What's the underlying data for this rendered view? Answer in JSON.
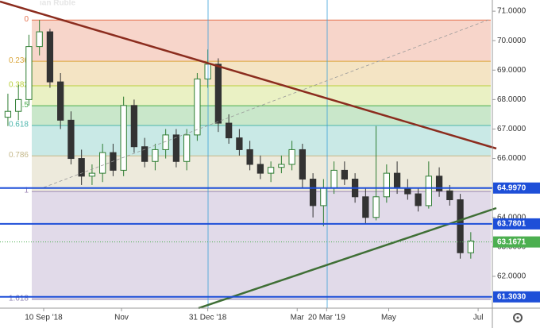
{
  "chart_data": {
    "type": "candlestick",
    "watermark": "ian Ruble",
    "categories": [
      null,
      null,
      null,
      null,
      null,
      null,
      null,
      null,
      null,
      null,
      null,
      null,
      null,
      null,
      null,
      null,
      null,
      null,
      null,
      null,
      null,
      null,
      null,
      null,
      null,
      null,
      null,
      null,
      null,
      null,
      null,
      null,
      null,
      null,
      null,
      null,
      null,
      null,
      null,
      null,
      null,
      null,
      null,
      null,
      null
    ],
    "open": [
      67.4,
      67.6,
      68.0,
      69.8,
      70.3,
      68.6,
      67.3,
      66.0,
      65.4,
      65.5,
      66.2,
      65.6,
      67.8,
      66.4,
      65.9,
      66.3,
      66.8,
      65.9,
      66.8,
      68.7,
      69.2,
      67.2,
      66.7,
      66.3,
      65.8,
      65.5,
      65.7,
      65.8,
      66.3,
      65.3,
      64.4,
      65.0,
      65.6,
      65.3,
      64.7,
      64.0,
      64.7,
      65.5,
      65.0,
      64.8,
      64.4,
      65.4,
      64.9,
      64.6,
      62.8
    ],
    "high": [
      68.2,
      68.5,
      70.2,
      70.7,
      70.4,
      68.9,
      67.6,
      66.3,
      65.8,
      66.5,
      66.5,
      68.1,
      68.0,
      66.7,
      66.5,
      67.0,
      67.0,
      67.0,
      68.9,
      69.7,
      69.4,
      67.5,
      67.0,
      66.6,
      66.1,
      65.9,
      66.1,
      66.6,
      66.5,
      65.5,
      65.3,
      65.9,
      65.9,
      65.5,
      65.0,
      67.1,
      65.8,
      65.9,
      65.3,
      65.0,
      65.9,
      65.7,
      65.1,
      64.8,
      63.5
    ],
    "low": [
      67.1,
      67.3,
      67.8,
      69.5,
      68.4,
      67.0,
      65.8,
      65.1,
      65.1,
      65.2,
      65.4,
      65.4,
      66.2,
      65.7,
      65.6,
      66.0,
      65.7,
      65.6,
      66.6,
      68.4,
      66.9,
      66.5,
      66.1,
      65.6,
      65.3,
      65.2,
      65.5,
      65.6,
      65.0,
      64.0,
      63.7,
      64.8,
      65.1,
      64.5,
      63.8,
      63.9,
      64.5,
      64.8,
      64.6,
      64.2,
      64.3,
      64.7,
      64.4,
      62.6,
      62.6
    ],
    "close": [
      67.6,
      68.0,
      69.8,
      70.3,
      68.6,
      67.3,
      66.0,
      65.4,
      65.5,
      66.2,
      65.6,
      67.8,
      66.4,
      65.9,
      66.3,
      66.8,
      65.9,
      66.8,
      68.7,
      69.2,
      67.2,
      66.7,
      66.3,
      65.8,
      65.5,
      65.7,
      65.8,
      66.3,
      65.3,
      64.4,
      65.0,
      65.6,
      65.3,
      64.7,
      64.0,
      64.7,
      65.5,
      65.0,
      64.8,
      64.4,
      65.4,
      64.9,
      64.6,
      62.8,
      63.2
    ],
    "up_color": "#2e7d32",
    "down_color": "#333333",
    "xlim": [
      -0.75,
      45.9
    ],
    "xticks": [
      {
        "value": 3.4,
        "label": "10 Sep '18"
      },
      {
        "value": 10.8,
        "label": "Nov"
      },
      {
        "value": 19.0,
        "label": "31 Dec '18"
      },
      {
        "value": 27.5,
        "label": "Mar"
      },
      {
        "value": 30.3,
        "label": "20 Mar '19"
      },
      {
        "value": 36.2,
        "label": "May"
      },
      {
        "value": 44.7,
        "label": "Jul"
      }
    ],
    "ylim": [
      60.92,
      71.38
    ],
    "yticks": [
      {
        "value": 71,
        "label": "71.0000"
      },
      {
        "value": 70,
        "label": "70.0000"
      },
      {
        "value": 69,
        "label": "69.0000"
      },
      {
        "value": 68,
        "label": "68.0000"
      },
      {
        "value": 67,
        "label": "67.0000"
      },
      {
        "value": 66,
        "label": "66.0000"
      },
      {
        "value": 65,
        "label": "65.0000"
      },
      {
        "value": 64,
        "label": "64.0000"
      },
      {
        "value": 63,
        "label": "63.0000"
      },
      {
        "value": 62,
        "label": "62.0000"
      }
    ],
    "fib_levels": [
      {
        "label": "0",
        "value": 70.7,
        "color": "#e57350"
      },
      {
        "label": "0.236",
        "value": 69.3,
        "color": "#d9a53a"
      },
      {
        "label": "0.382",
        "value": 68.47,
        "color": "#b9cf3a"
      },
      {
        "label": "0.5",
        "value": 67.79,
        "color": "#4caf50"
      },
      {
        "label": "0.618",
        "value": 67.12,
        "color": "#4db6ac"
      },
      {
        "label": "0.786",
        "value": 66.09,
        "color": "#c4b88a"
      },
      {
        "label": "1",
        "value": 64.88,
        "color": "#9b86b5"
      },
      {
        "label": "1.618",
        "value": 61.22,
        "color": "#8a7fb0"
      }
    ],
    "price_lines": [
      {
        "value": 64.997,
        "label": "64.9970",
        "color": "#1e4fd8"
      },
      {
        "value": 63.7801,
        "label": "63.7801",
        "color": "#1e4fd8"
      },
      {
        "value": 61.303,
        "label": "61.3030",
        "color": "#1e4fd8"
      }
    ],
    "last_price": {
      "value": 63.1671,
      "label": "63.1671",
      "color": "#4caf50"
    }
  }
}
